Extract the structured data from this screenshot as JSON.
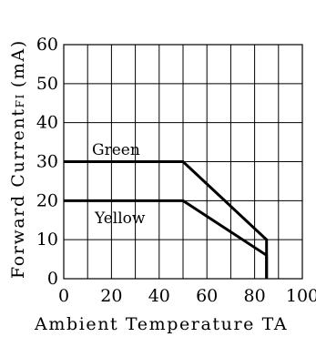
{
  "chart_data": {
    "type": "line",
    "xlabel": "Ambient Temperature TA",
    "ylabel": "Forward CurrentFI (mA)",
    "ylabel_parts": {
      "main": "Forward Current",
      "sub": "FI",
      "units": "(mA)"
    },
    "xlim": [
      0,
      100
    ],
    "ylim": [
      0,
      60
    ],
    "x_ticks": [
      0,
      20,
      40,
      60,
      80,
      100
    ],
    "y_ticks": [
      0,
      10,
      20,
      30,
      40,
      50,
      60
    ],
    "x_grid_step": 10,
    "y_grid_step": 10,
    "grid": true,
    "legend": "none",
    "series": [
      {
        "name": "Green",
        "x": [
          0,
          50,
          85,
          85
        ],
        "y": [
          30,
          30,
          10,
          0
        ]
      },
      {
        "name": "Yellow",
        "x": [
          0,
          50,
          85,
          85
        ],
        "y": [
          20,
          20,
          6,
          0
        ]
      }
    ]
  }
}
